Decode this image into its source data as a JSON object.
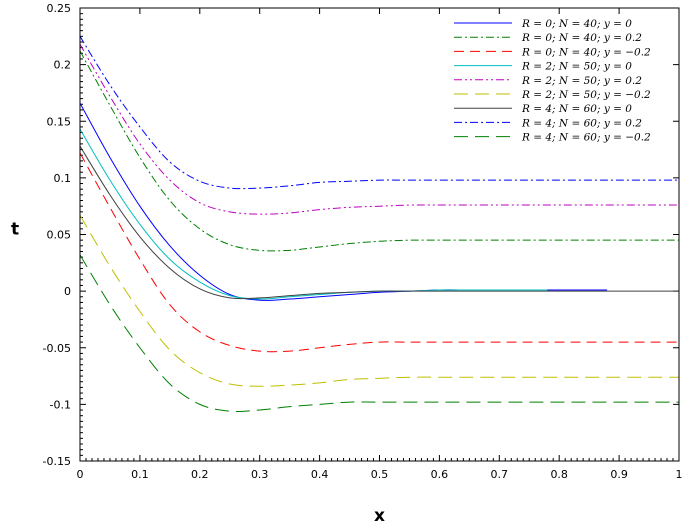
{
  "chart_data": {
    "type": "line",
    "title": "",
    "xlabel": "x",
    "ylabel": "t",
    "xlim": [
      0,
      1
    ],
    "ylim": [
      -0.15,
      0.25
    ],
    "xticks": [
      0,
      0.1,
      0.2,
      0.3,
      0.4,
      0.5,
      0.6,
      0.7,
      0.8,
      0.9,
      1
    ],
    "xtick_labels": [
      "0",
      "0.1",
      "0.2",
      "0.3",
      "0.4",
      "0.5",
      "0.6",
      "0.7",
      "0.8",
      "0.9",
      "1"
    ],
    "yticks": [
      -0.15,
      -0.1,
      -0.05,
      0,
      0.05,
      0.1,
      0.15,
      0.2,
      0.25
    ],
    "ytick_labels": [
      "-0.15",
      "-0.1",
      "-0.05",
      "0",
      "0.05",
      "0.1",
      "0.15",
      "0.2",
      "0.25"
    ],
    "grid": false,
    "legend_position": "top-right",
    "series": [
      {
        "name": "R = 0; N = 40; y = 0",
        "color": "#0000ff",
        "dash": "solid",
        "x": [
          0,
          0.05,
          0.1,
          0.15,
          0.2,
          0.25,
          0.3,
          0.35,
          0.4,
          0.45,
          0.5,
          0.55,
          0.6,
          0.65,
          0.7,
          0.8,
          0.88
        ],
        "y": [
          0.166,
          0.118,
          0.075,
          0.04,
          0.014,
          -0.003,
          -0.008,
          -0.007,
          -0.005,
          -0.003,
          -0.001,
          0,
          0.001,
          0.001,
          0.001,
          0.001,
          0.001
        ]
      },
      {
        "name": "R = 0; N = 40; y = 0.2",
        "color": "#008000",
        "dash": "dashdot",
        "x": [
          0,
          0.05,
          0.1,
          0.15,
          0.2,
          0.25,
          0.3,
          0.35,
          0.4,
          0.45,
          0.5,
          0.55,
          0.6,
          0.7,
          0.8,
          0.9,
          1
        ],
        "y": [
          0.212,
          0.164,
          0.118,
          0.08,
          0.055,
          0.041,
          0.036,
          0.036,
          0.039,
          0.042,
          0.044,
          0.045,
          0.045,
          0.045,
          0.045,
          0.045,
          0.045
        ]
      },
      {
        "name": "R = 0; N = 40; y = −0.2",
        "color": "#ff0000",
        "dash": "dashed",
        "x": [
          0,
          0.05,
          0.1,
          0.15,
          0.2,
          0.25,
          0.3,
          0.35,
          0.4,
          0.45,
          0.5,
          0.55,
          0.6,
          0.7,
          0.8,
          0.9,
          1
        ],
        "y": [
          0.122,
          0.074,
          0.028,
          -0.012,
          -0.036,
          -0.048,
          -0.053,
          -0.053,
          -0.05,
          -0.047,
          -0.045,
          -0.045,
          -0.045,
          -0.045,
          -0.045,
          -0.045,
          -0.045
        ]
      },
      {
        "name": "R = 2; N = 50; y = 0",
        "color": "#00bfbf",
        "dash": "solid",
        "x": [
          0,
          0.05,
          0.1,
          0.15,
          0.2,
          0.25,
          0.3,
          0.35,
          0.4,
          0.45,
          0.5,
          0.55,
          0.6,
          0.65,
          0.7,
          0.75,
          0.78
        ],
        "y": [
          0.143,
          0.098,
          0.059,
          0.028,
          0.008,
          -0.004,
          -0.007,
          -0.005,
          -0.003,
          -0.001,
          0,
          0,
          0.001,
          0.001,
          0.001,
          0.001,
          0.001
        ]
      },
      {
        "name": "R = 2; N = 50; y = 0.2",
        "color": "#bf00bf",
        "dash": "dashdotdot",
        "x": [
          0,
          0.05,
          0.1,
          0.15,
          0.2,
          0.25,
          0.3,
          0.35,
          0.4,
          0.45,
          0.5,
          0.55,
          0.6,
          0.7,
          0.8,
          0.9,
          1
        ],
        "y": [
          0.218,
          0.172,
          0.13,
          0.098,
          0.078,
          0.07,
          0.068,
          0.069,
          0.072,
          0.074,
          0.075,
          0.076,
          0.076,
          0.076,
          0.076,
          0.076,
          0.076
        ]
      },
      {
        "name": "R = 2; N = 50; y = −0.2",
        "color": "#bfbf00",
        "dash": "longdash",
        "x": [
          0,
          0.05,
          0.1,
          0.15,
          0.2,
          0.25,
          0.3,
          0.35,
          0.4,
          0.45,
          0.5,
          0.55,
          0.6,
          0.7,
          0.8,
          0.9,
          1
        ],
        "y": [
          0.067,
          0.022,
          -0.018,
          -0.052,
          -0.072,
          -0.082,
          -0.084,
          -0.083,
          -0.081,
          -0.078,
          -0.077,
          -0.076,
          -0.076,
          -0.076,
          -0.076,
          -0.076,
          -0.076
        ]
      },
      {
        "name": "R = 4; N = 60; y = 0",
        "color": "#404040",
        "dash": "solid",
        "x": [
          0,
          0.05,
          0.1,
          0.15,
          0.2,
          0.25,
          0.3,
          0.35,
          0.4,
          0.45,
          0.5,
          0.55,
          0.6,
          0.7,
          0.8,
          0.9,
          1
        ],
        "y": [
          0.128,
          0.085,
          0.048,
          0.02,
          0.002,
          -0.006,
          -0.006,
          -0.004,
          -0.002,
          -0.001,
          0,
          0,
          0,
          0,
          0,
          0,
          0
        ]
      },
      {
        "name": "R = 4; N = 60; y = 0.2",
        "color": "#0000ff",
        "dash": "dashdot",
        "x": [
          0,
          0.05,
          0.1,
          0.15,
          0.2,
          0.25,
          0.3,
          0.35,
          0.4,
          0.45,
          0.5,
          0.55,
          0.6,
          0.7,
          0.8,
          0.9,
          1
        ],
        "y": [
          0.225,
          0.182,
          0.145,
          0.114,
          0.097,
          0.091,
          0.091,
          0.093,
          0.096,
          0.097,
          0.098,
          0.098,
          0.098,
          0.098,
          0.098,
          0.098,
          0.098
        ]
      },
      {
        "name": "R = 4; N = 60; y = −0.2",
        "color": "#008000",
        "dash": "longdash",
        "x": [
          0,
          0.05,
          0.1,
          0.15,
          0.2,
          0.25,
          0.3,
          0.35,
          0.4,
          0.45,
          0.5,
          0.55,
          0.6,
          0.7,
          0.8,
          0.9,
          1
        ],
        "y": [
          0.032,
          -0.012,
          -0.05,
          -0.082,
          -0.1,
          -0.106,
          -0.105,
          -0.102,
          -0.1,
          -0.098,
          -0.098,
          -0.098,
          -0.098,
          -0.098,
          -0.098,
          -0.098,
          -0.098
        ]
      }
    ]
  }
}
